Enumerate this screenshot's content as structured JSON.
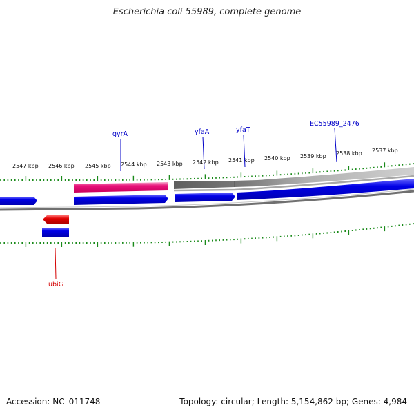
{
  "title": "Escherichia coli 55989, complete genome",
  "kbp_labels": [
    "2547 kbp",
    "2546 kbp",
    "2545 kbp",
    "2544 kbp",
    "2543 kbp",
    "2542 kbp",
    "2541 kbp",
    "2540 kbp",
    "2539 kbp",
    "2538 kbp",
    "2537 kbp"
  ],
  "genes": [
    {
      "name": "gyrA",
      "color": "#0000c8"
    },
    {
      "name": "yfaA",
      "color": "#0000c8"
    },
    {
      "name": "yfaT",
      "color": "#0000c8"
    },
    {
      "name": "EC55989_2476",
      "color": "#0000c8"
    },
    {
      "name": "ubiG",
      "color": "#d40000"
    }
  ],
  "colors": {
    "cds_forward": "#0000dd",
    "gene_pink": "#e8127a",
    "gene_red": "#e00000",
    "gene_gray": "#6e6e6e",
    "ticks": "#1a8a1a",
    "backbone": "#808080"
  },
  "footer": {
    "accession_label": "Accession:",
    "accession": "NC_011748",
    "topology_label": "Topology:",
    "topology": "circular",
    "length_label": "Length:",
    "length": "5,154,862 bp",
    "genes_label": "Genes:",
    "genes_count": "4,984"
  }
}
